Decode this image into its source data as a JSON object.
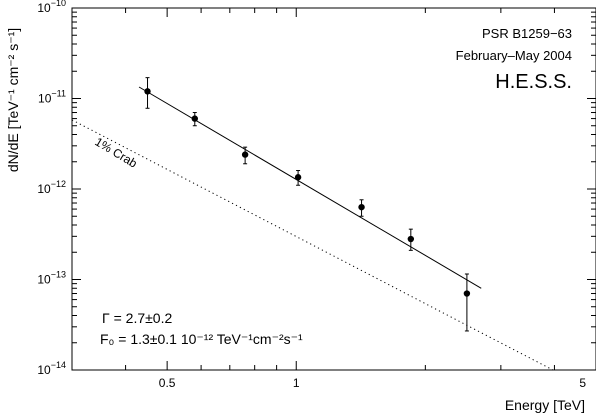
{
  "chart_data": {
    "type": "scatter",
    "title": "",
    "xlabel": "Energy [TeV]",
    "ylabel": "dN/dE [TeV⁻¹ cm⁻² s⁻¹]",
    "xscale": "log",
    "yscale": "log",
    "xlim": [
      0.3,
      5
    ],
    "ylim": [
      1e-14,
      1e-10
    ],
    "grid": false,
    "x_ticks": [
      {
        "value": 0.5,
        "label": "0.5"
      },
      {
        "value": 1,
        "label": "1"
      },
      {
        "value": 5,
        "label": "5"
      }
    ],
    "y_ticks": [
      {
        "value": 1e-10,
        "mantissa": "10",
        "exp": "−10"
      },
      {
        "value": 1e-11,
        "mantissa": "10",
        "exp": "−11"
      },
      {
        "value": 1e-12,
        "mantissa": "10",
        "exp": "−12"
      },
      {
        "value": 1e-13,
        "mantissa": "10",
        "exp": "−13"
      },
      {
        "value": 1e-14,
        "mantissa": "10",
        "exp": "−14"
      }
    ],
    "annotations": {
      "source": "PSR B1259−63",
      "period": "February–May 2004",
      "experiment": "H.E.S.S.",
      "crab_label": "1% Crab",
      "gamma_text": "Γ = 2.7±0.2",
      "f0_text": "F₀ = 1.3±0.1  10⁻¹² TeV⁻¹cm⁻²s⁻¹"
    },
    "points": [
      {
        "x": 0.45,
        "y": 1.2e-11,
        "ylo": 7.8e-12,
        "yhi": 1.7e-11
      },
      {
        "x": 0.58,
        "y": 6e-12,
        "ylo": 5e-12,
        "yhi": 7e-12
      },
      {
        "x": 0.76,
        "y": 2.4e-12,
        "ylo": 1.9e-12,
        "yhi": 2.9e-12
      },
      {
        "x": 1.01,
        "y": 1.35e-12,
        "ylo": 1.1e-12,
        "yhi": 1.6e-12
      },
      {
        "x": 1.42,
        "y": 6.3e-13,
        "ylo": 5e-13,
        "yhi": 7.6e-13
      },
      {
        "x": 1.85,
        "y": 2.8e-13,
        "ylo": 2.1e-13,
        "yhi": 3.6e-13
      },
      {
        "x": 2.5,
        "y": 7e-14,
        "ylo": 2.7e-14,
        "yhi": 1.15e-13
      }
    ],
    "fit_line": {
      "x": [
        0.43,
        2.7
      ],
      "y": [
        1.34e-11,
        8e-14
      ]
    },
    "crab_line": {
      "label": "1% Crab",
      "x": [
        0.3,
        4.0
      ],
      "y": [
        5.8e-12,
        9.8e-15
      ]
    }
  }
}
